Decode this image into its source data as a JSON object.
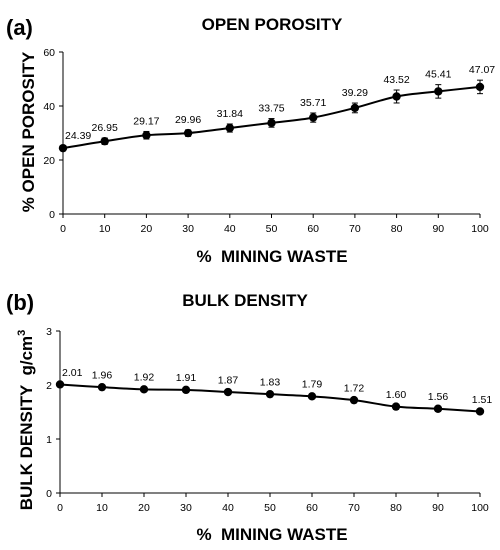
{
  "chart_data": [
    {
      "type": "line",
      "panel_label": "(a)",
      "title": "OPEN POROSITY",
      "xlabel": "%  MINING WASTE",
      "ylabel": "% OPEN POROSITY",
      "x": [
        0,
        10,
        20,
        30,
        40,
        50,
        60,
        70,
        80,
        90,
        100
      ],
      "x_ticks": [
        "0",
        "10",
        "20",
        "30",
        "40",
        "50",
        "60",
        "70",
        "80",
        "90",
        "100"
      ],
      "y_ticks": [
        "0",
        "20",
        "40",
        "60"
      ],
      "xlim": [
        0,
        100
      ],
      "ylim": [
        0,
        60
      ],
      "grid": false,
      "series": [
        {
          "values": [
            24.39,
            26.95,
            29.17,
            29.96,
            31.84,
            33.75,
            35.71,
            39.29,
            43.52,
            45.41,
            47.07
          ],
          "errors": [
            0.8,
            1.2,
            1.4,
            1.2,
            1.5,
            1.6,
            1.7,
            1.8,
            2.4,
            2.5,
            2.5
          ],
          "labels": [
            "24.39",
            "26.95",
            "29.17",
            "29.96",
            "31.84",
            "33.75",
            "35.71",
            "39.29",
            "43.52",
            "45.41",
            "47.07"
          ],
          "color": "#000000"
        }
      ]
    },
    {
      "type": "line",
      "panel_label": "(b)",
      "title": "BULK DENSITY",
      "xlabel": "%  MINING WASTE",
      "ylabel": "BULK DENSITY  g/cm",
      "ylabel_sup": "3",
      "x": [
        0,
        10,
        20,
        30,
        40,
        50,
        60,
        70,
        80,
        90,
        100
      ],
      "x_ticks": [
        "0",
        "10",
        "20",
        "30",
        "40",
        "50",
        "60",
        "70",
        "80",
        "90",
        "100"
      ],
      "y_ticks": [
        "0",
        "1",
        "2",
        "3"
      ],
      "xlim": [
        0,
        100
      ],
      "ylim": [
        0,
        3
      ],
      "grid": false,
      "series": [
        {
          "values": [
            2.01,
            1.96,
            1.92,
            1.91,
            1.87,
            1.83,
            1.79,
            1.72,
            1.6,
            1.56,
            1.51
          ],
          "errors": [
            0.03,
            0.03,
            0.03,
            0.03,
            0.03,
            0.03,
            0.03,
            0.03,
            0.03,
            0.03,
            0.03
          ],
          "labels": [
            "2.01",
            "1.96",
            "1.92",
            "1.91",
            "1.87",
            "1.83",
            "1.79",
            "1.72",
            "1.60",
            "1.56",
            "1.51"
          ],
          "color": "#000000"
        }
      ]
    }
  ]
}
